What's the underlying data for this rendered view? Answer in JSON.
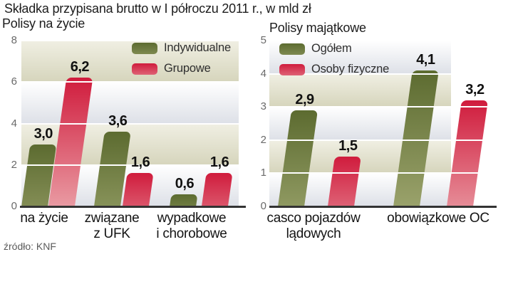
{
  "title": "Składka przypisana brutto w I półroczu 2011 r., w mld zł",
  "source": "źródło: KNF",
  "colors": {
    "series_green_top": "#5c6b30",
    "series_green_bottom": "#9aa26b",
    "series_red_top": "#d01c3d",
    "series_red_bottom": "#e99aa2",
    "band_beige_top": "#f0efe3",
    "band_beige_bottom": "#d6d5bc",
    "band_gray_top": "#ffffff",
    "band_gray_bottom": "#dde0e7",
    "gridline": "#ffffff",
    "baseline": "#333333"
  },
  "chart_data": [
    {
      "type": "bar",
      "title": "Polisy na życie",
      "ylabel": "",
      "xlabel": "",
      "ylim": [
        0,
        8
      ],
      "ticks": [
        0,
        2,
        4,
        6,
        8
      ],
      "grid": true,
      "legend_position": "top-right",
      "legend": [
        {
          "name": "Indywidualne",
          "color": "green"
        },
        {
          "name": "Grupowe",
          "color": "red"
        }
      ],
      "categories": [
        [
          "na życie"
        ],
        [
          "związane",
          "z UFK"
        ],
        [
          "wypadkowe",
          "i chorobowe"
        ]
      ],
      "series": [
        {
          "name": "Indywidualne",
          "values": [
            3.0,
            3.6,
            0.6
          ]
        },
        {
          "name": "Grupowe",
          "values": [
            6.2,
            1.6,
            1.6
          ]
        }
      ],
      "value_labels": [
        [
          "3,0",
          "6,2"
        ],
        [
          "3,6",
          "1,6"
        ],
        [
          "0,6",
          "1,6"
        ]
      ]
    },
    {
      "type": "bar",
      "title": "Polisy majątkowe",
      "ylabel": "",
      "xlabel": "",
      "ylim": [
        0,
        5
      ],
      "ticks": [
        0,
        1,
        2,
        3,
        4,
        5
      ],
      "grid": true,
      "legend_position": "top-left",
      "legend": [
        {
          "name": "Ogółem",
          "color": "green"
        },
        {
          "name": "Osoby fizyczne",
          "color": "red"
        }
      ],
      "categories": [
        [
          "casco pojazdów",
          "lądowych"
        ],
        [
          "obowiązkowe OC"
        ]
      ],
      "series": [
        {
          "name": "Ogółem",
          "values": [
            2.9,
            4.1
          ]
        },
        {
          "name": "Osoby fizyczne",
          "values": [
            1.5,
            3.2
          ]
        }
      ],
      "value_labels": [
        [
          "2,9",
          "1,5"
        ],
        [
          "4,1",
          "3,2"
        ]
      ]
    }
  ]
}
